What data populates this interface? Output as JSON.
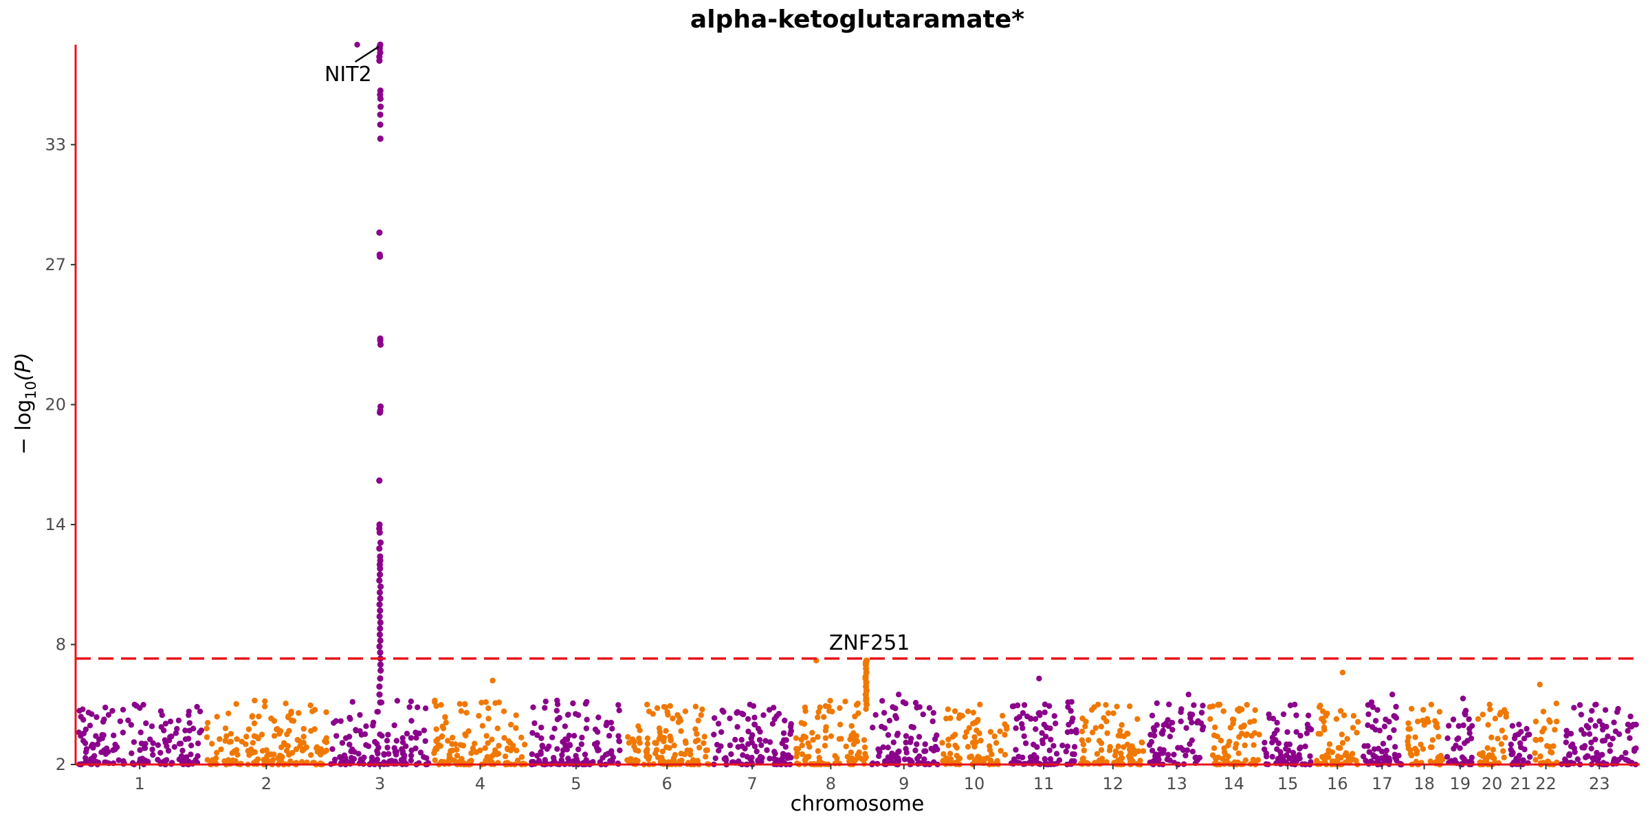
{
  "chart_data": {
    "type": "scatter",
    "title": "alpha-ketoglutaramate*",
    "xlabel": "chromosome",
    "ylabel_prefix": "− log",
    "ylabel_sub": "10",
    "ylabel_suffix": "(P)",
    "y_ticks": [
      2,
      8,
      14,
      20,
      27,
      33
    ],
    "ylim": [
      2,
      38
    ],
    "significance_threshold": 7.3,
    "colors": {
      "odd": "#8b008b",
      "even": "#f07800",
      "threshold": "#e8141a",
      "axis": "#e8141a"
    },
    "chromosomes": [
      {
        "label": "1",
        "len": 248,
        "max": 5.0
      },
      {
        "label": "2",
        "len": 242,
        "max": 5.2
      },
      {
        "label": "3",
        "len": 198,
        "max": 38.0
      },
      {
        "label": "4",
        "len": 190,
        "max": 6.2
      },
      {
        "label": "5",
        "len": 181,
        "max": 5.2
      },
      {
        "label": "6",
        "len": 171,
        "max": 5.0
      },
      {
        "label": "7",
        "len": 159,
        "max": 5.0
      },
      {
        "label": "8",
        "len": 145,
        "max": 7.2
      },
      {
        "label": "9",
        "len": 138,
        "max": 5.5
      },
      {
        "label": "10",
        "len": 134,
        "max": 5.0
      },
      {
        "label": "11",
        "len": 135,
        "max": 6.3
      },
      {
        "label": "12",
        "len": 133,
        "max": 5.0
      },
      {
        "label": "13",
        "len": 114,
        "max": 5.5
      },
      {
        "label": "14",
        "len": 107,
        "max": 5.0
      },
      {
        "label": "15",
        "len": 102,
        "max": 5.0
      },
      {
        "label": "16",
        "len": 90,
        "max": 6.6
      },
      {
        "label": "17",
        "len": 83,
        "max": 5.5
      },
      {
        "label": "18",
        "len": 80,
        "max": 5.0
      },
      {
        "label": "19",
        "len": 59,
        "max": 5.3
      },
      {
        "label": "20",
        "len": 64,
        "max": 5.0
      },
      {
        "label": "21",
        "len": 47,
        "max": 4.0
      },
      {
        "label": "22",
        "len": 51,
        "max": 6.0
      },
      {
        "label": "23",
        "len": 156,
        "max": 5.0
      }
    ],
    "peak_points": [
      {
        "chr": "3",
        "pos": 0.5,
        "values": [
          38.0,
          37.9,
          37.8,
          37.6,
          37.4,
          37.2,
          35.7,
          35.5,
          35.3,
          34.9,
          34.5,
          34.0,
          33.3,
          28.6,
          27.5,
          27.4,
          23.3,
          23.2,
          23.0,
          19.9,
          19.7,
          19.6,
          16.2,
          14.0,
          13.8,
          13.6,
          13.1,
          12.8,
          12.4,
          12.2,
          12.0,
          11.8,
          11.5,
          11.2,
          10.9,
          10.6,
          10.3,
          10.0,
          9.7,
          9.4,
          9.1,
          8.8,
          8.5,
          8.2,
          7.9,
          7.6,
          7.3,
          7.0,
          6.7,
          6.3,
          5.9,
          5.5,
          5.1
        ]
      },
      {
        "chr": "8",
        "pos": 0.97,
        "values": [
          7.2,
          7.1,
          7.0,
          6.8,
          6.6,
          6.4,
          6.3,
          6.1,
          5.9,
          5.7,
          5.5,
          5.3,
          5.2,
          5.0
        ]
      }
    ],
    "annotations": [
      {
        "label": "NIT2",
        "chr": "3",
        "pos": 0.5,
        "y": 38.0,
        "leader": true
      },
      {
        "label": "ZNF251",
        "chr": "8",
        "pos": 0.97,
        "y": 7.2,
        "leader": false
      }
    ]
  }
}
